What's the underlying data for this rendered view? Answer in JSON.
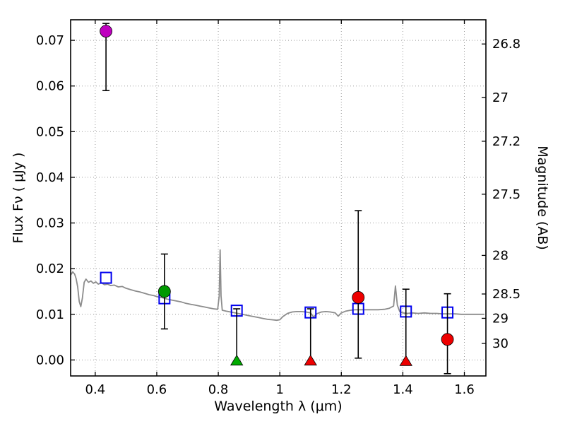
{
  "chart_data": {
    "type": "scatter",
    "title": "",
    "xlabel": "Wavelength  λ  (μm)",
    "ylabel_left": "Flux  Fν  ( μJy )",
    "ylabel_right": "Magnitude (AB)",
    "xlim": [
      0.32,
      1.67
    ],
    "ylim": [
      -0.0035,
      0.0745
    ],
    "grid": "dotted",
    "grid_color": "#9a9a9a",
    "xticks": [
      {
        "v": 0.4,
        "label": "0.4"
      },
      {
        "v": 0.6,
        "label": "0.6"
      },
      {
        "v": 0.8,
        "label": "0.8"
      },
      {
        "v": 1.0,
        "label": "1"
      },
      {
        "v": 1.2,
        "label": "1.2"
      },
      {
        "v": 1.4,
        "label": "1.4"
      },
      {
        "v": 1.6,
        "label": "1.6"
      }
    ],
    "yticks_left": [
      {
        "v": 0.0,
        "label": "0.00"
      },
      {
        "v": 0.01,
        "label": "0.01"
      },
      {
        "v": 0.02,
        "label": "0.02"
      },
      {
        "v": 0.03,
        "label": "0.03"
      },
      {
        "v": 0.04,
        "label": "0.04"
      },
      {
        "v": 0.05,
        "label": "0.05"
      },
      {
        "v": 0.06,
        "label": "0.06"
      },
      {
        "v": 0.07,
        "label": "0.07"
      }
    ],
    "yticks_right": [
      {
        "flux": 0.0692,
        "label": "26.8"
      },
      {
        "flux": 0.0575,
        "label": "27"
      },
      {
        "flux": 0.0479,
        "label": "27.2"
      },
      {
        "flux": 0.0363,
        "label": "27.5"
      },
      {
        "flux": 0.0229,
        "label": "28"
      },
      {
        "flux": 0.01445,
        "label": "28.5"
      },
      {
        "flux": 0.00912,
        "label": "29"
      },
      {
        "flux": 0.00363,
        "label": "30"
      }
    ],
    "spectrum": {
      "name": "model-spectrum",
      "color": "#8c8c8c",
      "points": [
        [
          0.32,
          0.0186
        ],
        [
          0.327,
          0.0193
        ],
        [
          0.333,
          0.0188
        ],
        [
          0.338,
          0.0178
        ],
        [
          0.343,
          0.016
        ],
        [
          0.348,
          0.0128
        ],
        [
          0.353,
          0.0117
        ],
        [
          0.358,
          0.0135
        ],
        [
          0.364,
          0.017
        ],
        [
          0.37,
          0.0177
        ],
        [
          0.378,
          0.017
        ],
        [
          0.386,
          0.0173
        ],
        [
          0.394,
          0.0168
        ],
        [
          0.402,
          0.0171
        ],
        [
          0.41,
          0.0166
        ],
        [
          0.42,
          0.0169
        ],
        [
          0.43,
          0.0165
        ],
        [
          0.44,
          0.0166
        ],
        [
          0.45,
          0.0163
        ],
        [
          0.462,
          0.0164
        ],
        [
          0.475,
          0.016
        ],
        [
          0.488,
          0.0161
        ],
        [
          0.5,
          0.0157
        ],
        [
          0.515,
          0.0154
        ],
        [
          0.53,
          0.0151
        ],
        [
          0.545,
          0.0149
        ],
        [
          0.56,
          0.0146
        ],
        [
          0.575,
          0.0143
        ],
        [
          0.59,
          0.0141
        ],
        [
          0.605,
          0.0138
        ],
        [
          0.62,
          0.0136
        ],
        [
          0.635,
          0.0133
        ],
        [
          0.65,
          0.0131
        ],
        [
          0.665,
          0.0129
        ],
        [
          0.68,
          0.0127
        ],
        [
          0.695,
          0.0124
        ],
        [
          0.71,
          0.0122
        ],
        [
          0.725,
          0.012
        ],
        [
          0.74,
          0.0118
        ],
        [
          0.755,
          0.0116
        ],
        [
          0.77,
          0.0114
        ],
        [
          0.785,
          0.0112
        ],
        [
          0.798,
          0.0111
        ],
        [
          0.803,
          0.014
        ],
        [
          0.806,
          0.0241
        ],
        [
          0.809,
          0.014
        ],
        [
          0.813,
          0.0109
        ],
        [
          0.825,
          0.0107
        ],
        [
          0.84,
          0.0105
        ],
        [
          0.855,
          0.0103
        ],
        [
          0.87,
          0.0101
        ],
        [
          0.885,
          0.0099
        ],
        [
          0.9,
          0.0097
        ],
        [
          0.915,
          0.0095
        ],
        [
          0.93,
          0.0093
        ],
        [
          0.945,
          0.0091
        ],
        [
          0.96,
          0.0089
        ],
        [
          0.975,
          0.0088
        ],
        [
          0.99,
          0.0087
        ],
        [
          1.0,
          0.0088
        ],
        [
          1.01,
          0.0095
        ],
        [
          1.025,
          0.0102
        ],
        [
          1.04,
          0.0105
        ],
        [
          1.055,
          0.0106
        ],
        [
          1.07,
          0.0106
        ],
        [
          1.085,
          0.0105
        ],
        [
          1.1,
          0.0103
        ],
        [
          1.11,
          0.0094
        ],
        [
          1.12,
          0.0101
        ],
        [
          1.135,
          0.0105
        ],
        [
          1.15,
          0.0106
        ],
        [
          1.165,
          0.0105
        ],
        [
          1.18,
          0.0103
        ],
        [
          1.19,
          0.0096
        ],
        [
          1.2,
          0.0103
        ],
        [
          1.215,
          0.0107
        ],
        [
          1.23,
          0.0109
        ],
        [
          1.245,
          0.011
        ],
        [
          1.26,
          0.011
        ],
        [
          1.28,
          0.011
        ],
        [
          1.3,
          0.011
        ],
        [
          1.32,
          0.011
        ],
        [
          1.34,
          0.0111
        ],
        [
          1.355,
          0.0113
        ],
        [
          1.37,
          0.0118
        ],
        [
          1.376,
          0.0162
        ],
        [
          1.382,
          0.012
        ],
        [
          1.39,
          0.0106
        ],
        [
          1.4,
          0.0103
        ],
        [
          1.415,
          0.0102
        ],
        [
          1.43,
          0.0103
        ],
        [
          1.45,
          0.0102
        ],
        [
          1.47,
          0.0103
        ],
        [
          1.49,
          0.0102
        ],
        [
          1.51,
          0.0102
        ],
        [
          1.53,
          0.0101
        ],
        [
          1.55,
          0.0101
        ],
        [
          1.57,
          0.0101
        ],
        [
          1.59,
          0.01
        ],
        [
          1.61,
          0.01
        ],
        [
          1.63,
          0.01
        ],
        [
          1.65,
          0.01
        ],
        [
          1.665,
          0.01
        ]
      ]
    },
    "model_photometry": {
      "name": "model-band-fluxes",
      "marker": "open-square",
      "color": "#0000ee",
      "points": [
        [
          0.435,
          0.018
        ],
        [
          0.625,
          0.0135
        ],
        [
          0.86,
          0.0108
        ],
        [
          1.1,
          0.0104
        ],
        [
          1.255,
          0.0112
        ],
        [
          1.41,
          0.0106
        ],
        [
          1.545,
          0.0104
        ]
      ]
    },
    "observations": [
      {
        "x": 0.435,
        "y": 0.072,
        "marker": "circle",
        "color": "#bf00bf",
        "bar_lo": 0.059,
        "bar_hi": 0.0737,
        "limit": false
      },
      {
        "x": 0.625,
        "y": 0.015,
        "marker": "circle",
        "color": "#009900",
        "bar_lo": 0.0068,
        "bar_hi": 0.0232,
        "limit": false
      },
      {
        "x": 0.86,
        "y": -0.0002,
        "marker": "triangle",
        "color": "#00aa00",
        "bar_lo": -0.0002,
        "bar_hi": 0.0112,
        "limit": true
      },
      {
        "x": 1.1,
        "y": -0.0002,
        "marker": "triangle",
        "color": "#ee0000",
        "bar_lo": -0.0002,
        "bar_hi": 0.0112,
        "limit": true
      },
      {
        "x": 1.255,
        "y": 0.0137,
        "marker": "circle",
        "color": "#ee0000",
        "bar_lo": 0.0004,
        "bar_hi": 0.0327,
        "limit": false
      },
      {
        "x": 1.41,
        "y": -0.0003,
        "marker": "triangle",
        "color": "#ee0000",
        "bar_lo": -0.0003,
        "bar_hi": 0.0155,
        "limit": true
      },
      {
        "x": 1.545,
        "y": 0.0045,
        "marker": "circle",
        "color": "#ee0000",
        "bar_lo": -0.003,
        "bar_hi": 0.0145,
        "limit": false
      }
    ]
  }
}
